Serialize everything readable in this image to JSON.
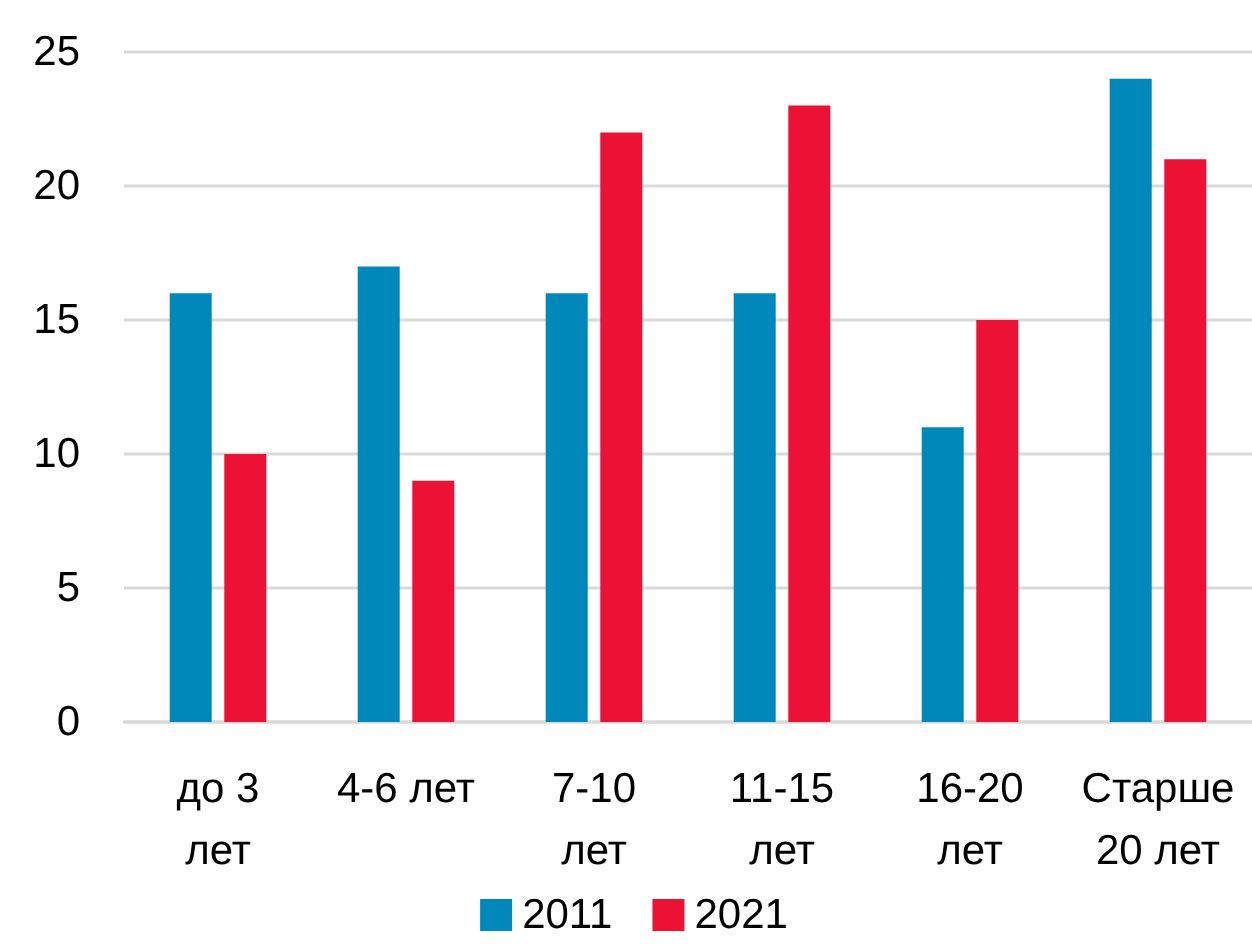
{
  "chart_data": {
    "type": "bar",
    "categories": [
      "до 3 лет",
      "4-6 лет",
      "7-10 лет",
      "11-15 лет",
      "16-20 лет",
      "Старше 20 лет"
    ],
    "series": [
      {
        "name": "2011",
        "color": "#0088bb",
        "values": [
          16,
          17,
          16,
          16,
          11,
          24
        ]
      },
      {
        "name": "2021",
        "color": "#ec1236",
        "values": [
          10,
          9,
          22,
          23,
          15,
          21
        ]
      }
    ],
    "ylim": [
      0,
      25
    ],
    "yticks": [
      0,
      5,
      10,
      15,
      20,
      25
    ],
    "grid": "y",
    "legend": "bottom"
  }
}
